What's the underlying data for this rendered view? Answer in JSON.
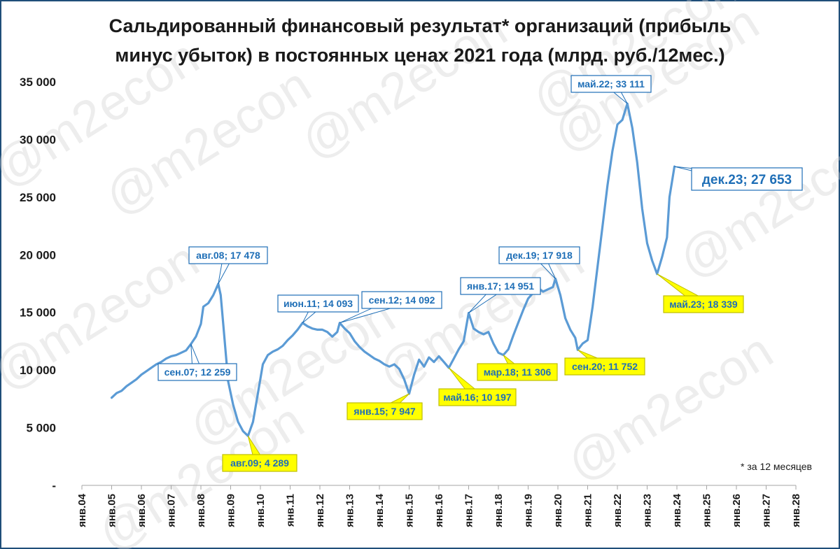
{
  "watermark": "@m2econ",
  "footnote": "* за 12 месяцев",
  "chart_data": {
    "type": "line",
    "title": "Сальдированный финансовый результат* организаций (прибыль минус убыток) в постоянных ценах 2021 года (млрд. руб./12мес.)",
    "title_lines": [
      "Сальдированный финансовый результат* организаций (прибыль",
      "минус убыток) в постоянных ценах 2021 года (млрд. руб./12мес.)"
    ],
    "xlabel": "",
    "ylabel": "",
    "ylim": [
      0,
      35000
    ],
    "y_ticks": [
      {
        "value": 0,
        "label": "-"
      },
      {
        "value": 5000,
        "label": "5 000"
      },
      {
        "value": 10000,
        "label": "10 000"
      },
      {
        "value": 15000,
        "label": "15 000"
      },
      {
        "value": 20000,
        "label": "20 000"
      },
      {
        "value": 25000,
        "label": "25 000"
      },
      {
        "value": 30000,
        "label": "30 000"
      },
      {
        "value": 35000,
        "label": "35 000"
      }
    ],
    "x_ticks": [
      "янв.04",
      "янв.05",
      "янв.06",
      "янв.07",
      "янв.08",
      "янв.09",
      "янв.10",
      "янв.11",
      "янв.12",
      "янв.13",
      "янв.14",
      "янв.15",
      "янв.16",
      "янв.17",
      "янв.18",
      "янв.19",
      "янв.20",
      "янв.21",
      "янв.22",
      "янв.23",
      "янв.24",
      "янв.25",
      "янв.26",
      "янв.27",
      "янв.28"
    ],
    "grid": false,
    "line_color": "#5b9bd5",
    "annotation_color": "#1f6fb7",
    "highlight_color": "#ffff00",
    "series": [
      {
        "points": [
          [
            "янв.05",
            7600
          ],
          [
            "мар.05",
            8000
          ],
          [
            "май.05",
            8200
          ],
          [
            "июл.05",
            8600
          ],
          [
            "сен.05",
            8900
          ],
          [
            "ноя.05",
            9200
          ],
          [
            "янв.06",
            9600
          ],
          [
            "мар.06",
            9900
          ],
          [
            "май.06",
            10200
          ],
          [
            "июл.06",
            10500
          ],
          [
            "сен.06",
            10700
          ],
          [
            "ноя.06",
            11000
          ],
          [
            "янв.07",
            11200
          ],
          [
            "мар.07",
            11300
          ],
          [
            "май.07",
            11500
          ],
          [
            "июл.07",
            11700
          ],
          [
            "сен.07",
            12259
          ],
          [
            "ноя.07",
            12900
          ],
          [
            "янв.08",
            14000
          ],
          [
            "фев.08",
            15500
          ],
          [
            "апр.08",
            15800
          ],
          [
            "июн.08",
            16500
          ],
          [
            "авг.08",
            17478
          ],
          [
            "сен.08",
            16500
          ],
          [
            "окт.08",
            14000
          ],
          [
            "дек.08",
            9000
          ],
          [
            "фев.09",
            7000
          ],
          [
            "апр.09",
            5500
          ],
          [
            "июн.09",
            4700
          ],
          [
            "авг.09",
            4289
          ],
          [
            "окт.09",
            5500
          ],
          [
            "дек.09",
            8000
          ],
          [
            "фев.10",
            10500
          ],
          [
            "апр.10",
            11300
          ],
          [
            "июн.10",
            11600
          ],
          [
            "авг.10",
            11800
          ],
          [
            "окт.10",
            12100
          ],
          [
            "дек.10",
            12600
          ],
          [
            "фев.11",
            13000
          ],
          [
            "апр.11",
            13500
          ],
          [
            "июн.11",
            14093
          ],
          [
            "авг.11",
            13800
          ],
          [
            "окт.11",
            13600
          ],
          [
            "дек.11",
            13500
          ],
          [
            "фев.12",
            13500
          ],
          [
            "апр.12",
            13300
          ],
          [
            "июн.12",
            12900
          ],
          [
            "авг.12",
            13300
          ],
          [
            "сен.12",
            14092
          ],
          [
            "ноя.12",
            13600
          ],
          [
            "янв.13",
            13200
          ],
          [
            "мар.13",
            12500
          ],
          [
            "май.13",
            12000
          ],
          [
            "июл.13",
            11600
          ],
          [
            "сен.13",
            11300
          ],
          [
            "ноя.13",
            11000
          ],
          [
            "янв.14",
            10800
          ],
          [
            "мар.14",
            10500
          ],
          [
            "май.14",
            10300
          ],
          [
            "июл.14",
            10500
          ],
          [
            "сен.14",
            10100
          ],
          [
            "ноя.14",
            9200
          ],
          [
            "янв.15",
            7947
          ],
          [
            "мар.15",
            9600
          ],
          [
            "май.15",
            10900
          ],
          [
            "июл.15",
            10300
          ],
          [
            "сен.15",
            11100
          ],
          [
            "ноя.15",
            10700
          ],
          [
            "янв.16",
            11200
          ],
          [
            "мар.16",
            10700
          ],
          [
            "май.16",
            10197
          ],
          [
            "июл.16",
            11000
          ],
          [
            "сен.16",
            11800
          ],
          [
            "ноя.16",
            12500
          ],
          [
            "янв.17",
            14951
          ],
          [
            "мар.17",
            13600
          ],
          [
            "май.17",
            13300
          ],
          [
            "июл.17",
            13100
          ],
          [
            "сен.17",
            13300
          ],
          [
            "ноя.17",
            12300
          ],
          [
            "янв.18",
            11500
          ],
          [
            "мар.18",
            11306
          ],
          [
            "май.18",
            11800
          ],
          [
            "июл.18",
            13000
          ],
          [
            "сен.18",
            14100
          ],
          [
            "ноя.18",
            15200
          ],
          [
            "янв.19",
            16200
          ],
          [
            "мар.19",
            16700
          ],
          [
            "май.19",
            17100
          ],
          [
            "июл.19",
            16800
          ],
          [
            "сен.19",
            17000
          ],
          [
            "ноя.19",
            17200
          ],
          [
            "дек.19",
            17918
          ],
          [
            "фев.20",
            16500
          ],
          [
            "апр.20",
            14500
          ],
          [
            "июн.20",
            13500
          ],
          [
            "авг.20",
            12800
          ],
          [
            "сен.20",
            11752
          ],
          [
            "ноя.20",
            12300
          ],
          [
            "янв.21",
            12600
          ],
          [
            "мар.21",
            15500
          ],
          [
            "май.21",
            19000
          ],
          [
            "июл.21",
            22500
          ],
          [
            "сен.21",
            26000
          ],
          [
            "ноя.21",
            29000
          ],
          [
            "янв.22",
            31300
          ],
          [
            "мар.22",
            31700
          ],
          [
            "май.22",
            33111
          ],
          [
            "июл.22",
            31000
          ],
          [
            "сен.22",
            28000
          ],
          [
            "ноя.22",
            24000
          ],
          [
            "янв.23",
            21000
          ],
          [
            "мар.23",
            19500
          ],
          [
            "май.23",
            18339
          ],
          [
            "июл.23",
            19800
          ],
          [
            "сен.23",
            21500
          ],
          [
            "окт.23",
            25000
          ],
          [
            "ноя.23",
            26300
          ],
          [
            "дек.23",
            27653
          ]
        ]
      }
    ],
    "annotations": [
      {
        "label": "сен.07;  12 259",
        "date": "сен.07",
        "value": 12259,
        "highlight": false,
        "big": false
      },
      {
        "label": "авг.08;  17 478",
        "date": "авг.08",
        "value": 17478,
        "highlight": false,
        "big": false
      },
      {
        "label": "авг.09;  4 289",
        "date": "авг.09",
        "value": 4289,
        "highlight": true,
        "big": false
      },
      {
        "label": "июн.11;  14 093",
        "date": "июн.11",
        "value": 14093,
        "highlight": false,
        "big": false
      },
      {
        "label": "сен.12;  14 092",
        "date": "сен.12",
        "value": 14092,
        "highlight": false,
        "big": false
      },
      {
        "label": "янв.15;  7 947",
        "date": "янв.15",
        "value": 7947,
        "highlight": true,
        "big": false
      },
      {
        "label": "май.16;  10 197",
        "date": "май.16",
        "value": 10197,
        "highlight": true,
        "big": false
      },
      {
        "label": "янв.17;  14 951",
        "date": "янв.17",
        "value": 14951,
        "highlight": false,
        "big": false
      },
      {
        "label": "мар.18;  11 306",
        "date": "мар.18",
        "value": 11306,
        "highlight": true,
        "big": false
      },
      {
        "label": "дек.19;  17 918",
        "date": "дек.19",
        "value": 17918,
        "highlight": false,
        "big": false
      },
      {
        "label": "сен.20;  11 752",
        "date": "сен.20",
        "value": 11752,
        "highlight": true,
        "big": false
      },
      {
        "label": "май.22;  33 111",
        "date": "май.22",
        "value": 33111,
        "highlight": false,
        "big": false
      },
      {
        "label": "май.23;  18 339",
        "date": "май.23",
        "value": 18339,
        "highlight": true,
        "big": false
      },
      {
        "label": "дек.23;  27 653",
        "date": "дек.23",
        "value": 27653,
        "highlight": false,
        "big": true
      }
    ]
  }
}
